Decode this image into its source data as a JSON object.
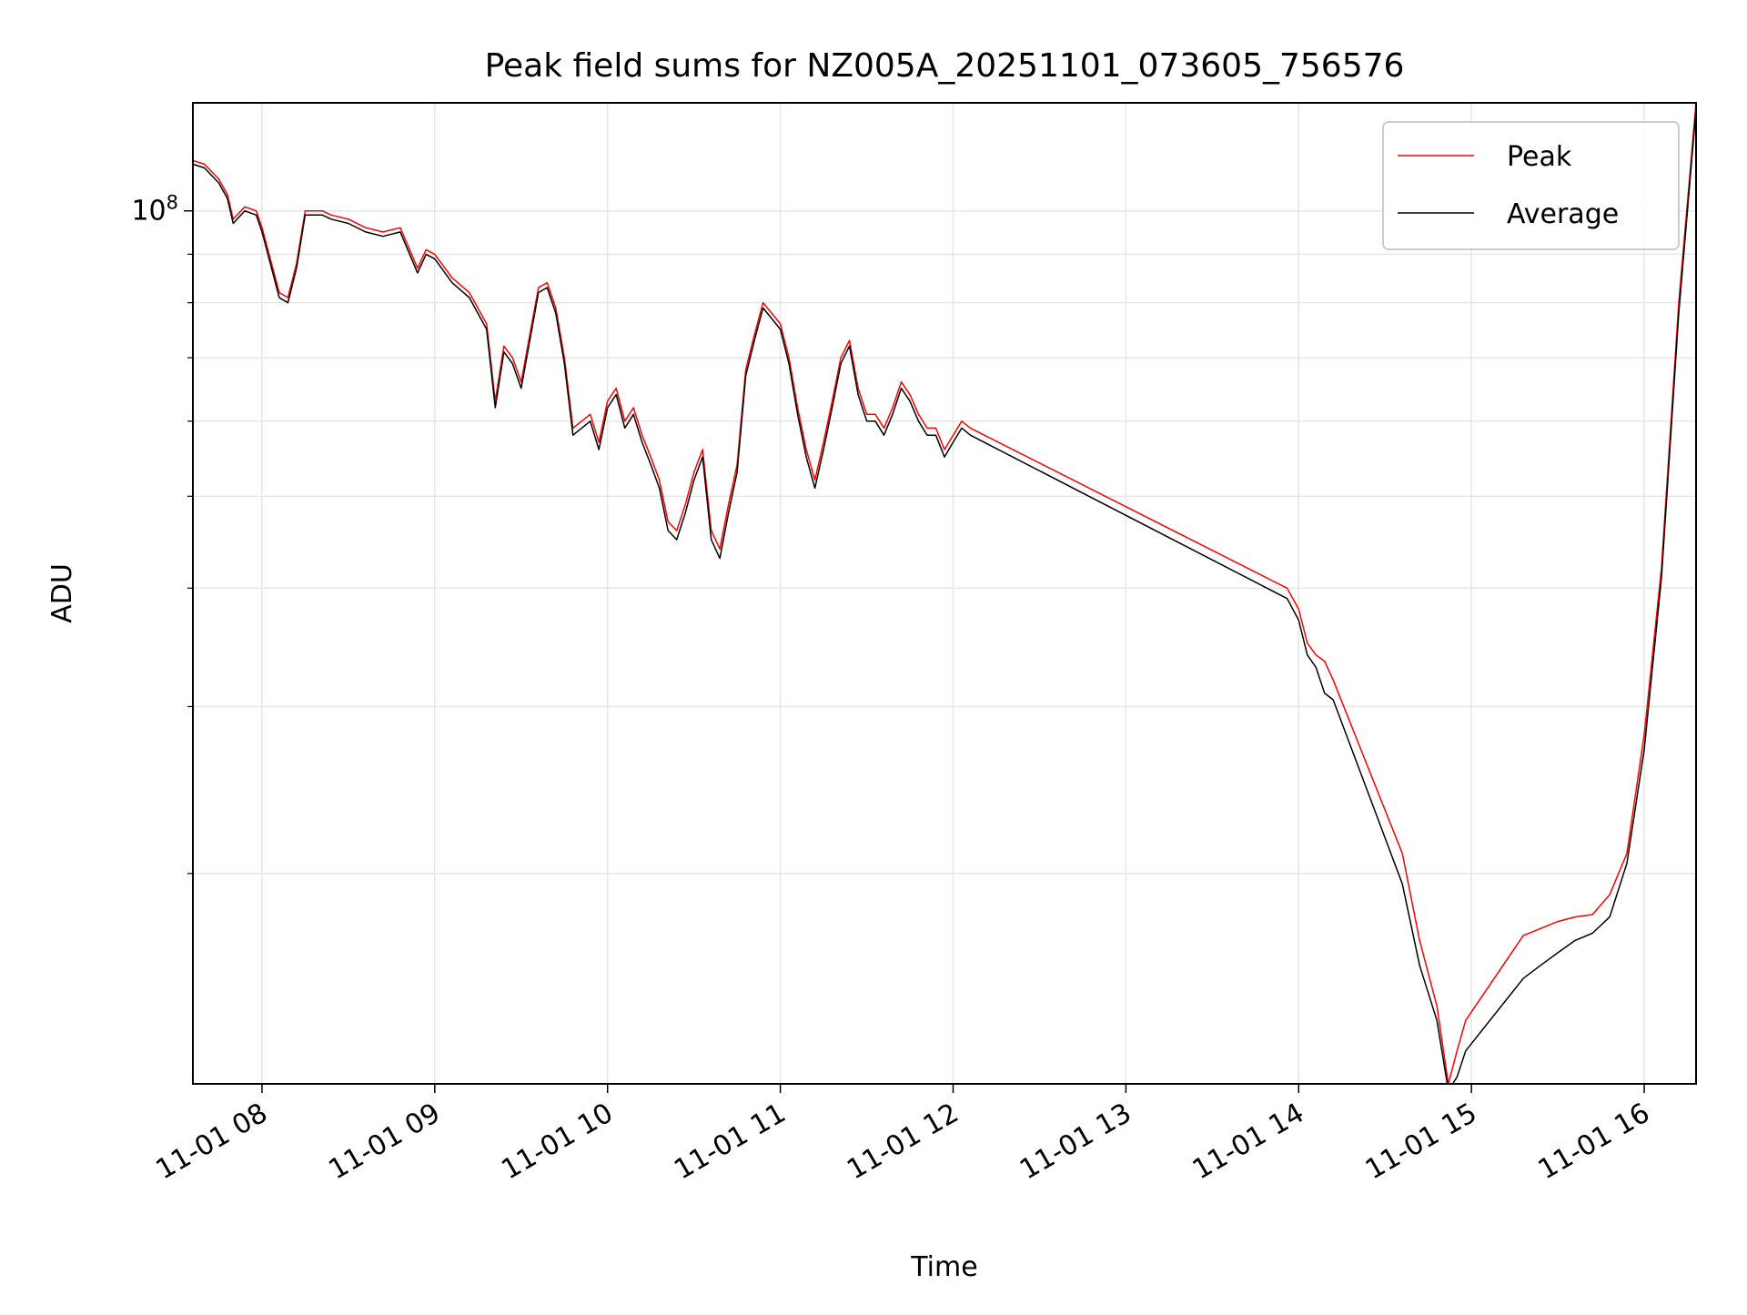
{
  "chart_data": {
    "type": "line",
    "title": "Peak field sums for NZ005A_20251101_073605_756576",
    "xlabel": "Time",
    "ylabel": "ADU",
    "x_unit": "time of day (2025-11-01)",
    "xlim": [
      "07:36",
      "16:18"
    ],
    "x_ticks": [
      "08:00",
      "09:00",
      "10:00",
      "11:00",
      "12:00",
      "13:00",
      "14:00",
      "15:00",
      "16:00"
    ],
    "x_tick_labels": [
      "11-01 08",
      "11-01 09",
      "11-01 10",
      "11-01 11",
      "11-01 12",
      "11-01 13",
      "11-01 14",
      "11-01 15",
      "11-01 16"
    ],
    "yscale": "log",
    "ylim": [
      12000000,
      130000000
    ],
    "y_major_ticks": [
      100000000
    ],
    "y_major_tick_labels_base": "10",
    "y_major_tick_labels_exp": "8",
    "y_minor_ticks": [
      20000000,
      30000000,
      40000000,
      50000000,
      60000000,
      70000000,
      80000000,
      90000000
    ],
    "grid": true,
    "legend_position": "top-right",
    "series": [
      {
        "name": "Peak",
        "color": "#ff0000",
        "x": [
          "07:36",
          "07:40",
          "07:45",
          "07:48",
          "07:50",
          "07:54",
          "07:58",
          "08:00",
          "08:06",
          "08:09",
          "08:12",
          "08:15",
          "08:21",
          "08:24",
          "08:30",
          "08:36",
          "08:42",
          "08:48",
          "08:54",
          "08:57",
          "09:00",
          "09:06",
          "09:12",
          "09:18",
          "09:21",
          "09:24",
          "09:27",
          "09:30",
          "09:36",
          "09:39",
          "09:42",
          "09:45",
          "09:48",
          "09:54",
          "09:57",
          "10:00",
          "10:03",
          "10:06",
          "10:09",
          "10:12",
          "10:15",
          "10:18",
          "10:21",
          "10:24",
          "10:27",
          "10:30",
          "10:33",
          "10:36",
          "10:39",
          "10:42",
          "10:45",
          "10:48",
          "10:51",
          "10:54",
          "10:57",
          "11:00",
          "11:03",
          "11:06",
          "11:09",
          "11:12",
          "11:15",
          "11:18",
          "11:21",
          "11:24",
          "11:27",
          "11:30",
          "11:33",
          "11:36",
          "11:39",
          "11:42",
          "11:45",
          "11:48",
          "11:51",
          "11:54",
          "11:57",
          "12:00",
          "12:03",
          "12:06",
          "13:56",
          "14:00",
          "14:03",
          "14:06",
          "14:09",
          "14:12",
          "14:36",
          "14:42",
          "14:48",
          "14:52",
          "14:55",
          "14:58",
          "15:18",
          "15:24",
          "15:30",
          "15:36",
          "15:42",
          "15:48",
          "15:54",
          "16:00",
          "16:06",
          "16:12",
          "16:18"
        ],
        "y": [
          113000000,
          112000000,
          108000000,
          104000000,
          98000000,
          101000000,
          100000000,
          96000000,
          82000000,
          81000000,
          88000000,
          100000000,
          100000000,
          99000000,
          98000000,
          96000000,
          95000000,
          96000000,
          87000000,
          91000000,
          90000000,
          85000000,
          82000000,
          76000000,
          63000000,
          72000000,
          70000000,
          66000000,
          83000000,
          84000000,
          79000000,
          70000000,
          59000000,
          61000000,
          57000000,
          63000000,
          65000000,
          60000000,
          62000000,
          58000000,
          55000000,
          52000000,
          47000000,
          46000000,
          49000000,
          53000000,
          56000000,
          46000000,
          44000000,
          49000000,
          54000000,
          68000000,
          74000000,
          80000000,
          78000000,
          76000000,
          70000000,
          62000000,
          56000000,
          52000000,
          57000000,
          63000000,
          70000000,
          73000000,
          65000000,
          61000000,
          61000000,
          59000000,
          62000000,
          66000000,
          64000000,
          61000000,
          59000000,
          59000000,
          56000000,
          58000000,
          60000000,
          59000000,
          40000000,
          38000000,
          35000000,
          34000000,
          33500000,
          32000000,
          21000000,
          17000000,
          14500000,
          12000000,
          13000000,
          14000000,
          17200000,
          17500000,
          17800000,
          18000000,
          18100000,
          19000000,
          21000000,
          28000000,
          42000000,
          80000000,
          130000000
        ]
      },
      {
        "name": "Average",
        "color": "#000000",
        "x": [
          "07:36",
          "07:40",
          "07:45",
          "07:48",
          "07:50",
          "07:54",
          "07:58",
          "08:00",
          "08:06",
          "08:09",
          "08:12",
          "08:15",
          "08:21",
          "08:24",
          "08:30",
          "08:36",
          "08:42",
          "08:48",
          "08:54",
          "08:57",
          "09:00",
          "09:06",
          "09:12",
          "09:18",
          "09:21",
          "09:24",
          "09:27",
          "09:30",
          "09:36",
          "09:39",
          "09:42",
          "09:45",
          "09:48",
          "09:54",
          "09:57",
          "10:00",
          "10:03",
          "10:06",
          "10:09",
          "10:12",
          "10:15",
          "10:18",
          "10:21",
          "10:24",
          "10:27",
          "10:30",
          "10:33",
          "10:36",
          "10:39",
          "10:42",
          "10:45",
          "10:48",
          "10:51",
          "10:54",
          "10:57",
          "11:00",
          "11:03",
          "11:06",
          "11:09",
          "11:12",
          "11:15",
          "11:18",
          "11:21",
          "11:24",
          "11:27",
          "11:30",
          "11:33",
          "11:36",
          "11:39",
          "11:42",
          "11:45",
          "11:48",
          "11:51",
          "11:54",
          "11:57",
          "12:00",
          "12:03",
          "12:06",
          "13:56",
          "14:00",
          "14:03",
          "14:06",
          "14:09",
          "14:12",
          "14:36",
          "14:42",
          "14:48",
          "14:52",
          "14:55",
          "14:58",
          "15:18",
          "15:24",
          "15:30",
          "15:36",
          "15:42",
          "15:48",
          "15:54",
          "16:00",
          "16:06",
          "16:12",
          "16:18"
        ],
        "y": [
          112000000,
          111000000,
          107000000,
          103000000,
          97000000,
          100000000,
          99000000,
          95000000,
          81000000,
          80000000,
          87000000,
          99000000,
          99000000,
          98000000,
          97000000,
          95000000,
          94000000,
          95000000,
          86000000,
          90000000,
          89000000,
          84000000,
          81000000,
          75000000,
          62000000,
          71000000,
          69000000,
          65000000,
          82000000,
          83000000,
          78000000,
          69000000,
          58000000,
          60000000,
          56000000,
          62000000,
          64000000,
          59000000,
          61000000,
          57000000,
          54000000,
          51000000,
          46000000,
          45000000,
          48000000,
          52000000,
          55000000,
          45000000,
          43000000,
          48000000,
          53000000,
          67000000,
          73000000,
          79000000,
          77000000,
          75000000,
          69000000,
          61000000,
          55000000,
          51000000,
          56000000,
          62000000,
          69000000,
          72000000,
          64000000,
          60000000,
          60000000,
          58000000,
          61000000,
          65000000,
          63000000,
          60000000,
          58000000,
          58000000,
          55000000,
          57000000,
          59000000,
          58000000,
          39000000,
          37000000,
          34000000,
          33000000,
          31000000,
          30500000,
          19500000,
          16000000,
          14000000,
          11800000,
          12200000,
          13000000,
          15500000,
          16000000,
          16500000,
          17000000,
          17300000,
          18000000,
          20500000,
          27000000,
          41000000,
          78000000,
          128000000
        ]
      }
    ]
  }
}
